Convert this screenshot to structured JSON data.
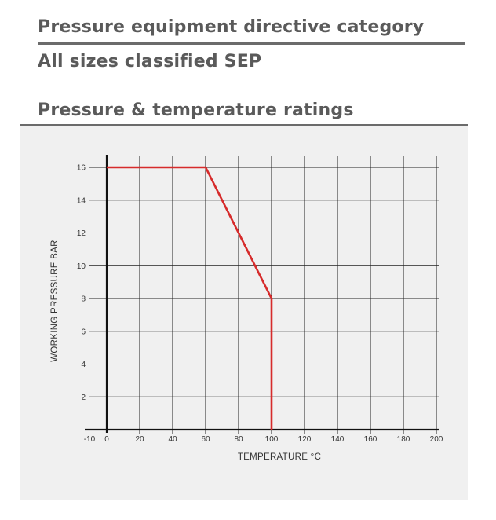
{
  "headings": {
    "directive": "Pressure equipment directive category",
    "classification": "All sizes classified SEP",
    "ratings": "Pressure & temperature ratings"
  },
  "chart_data": {
    "type": "line",
    "xlabel": "TEMPERATURE °C",
    "ylabel": "WORKING PRESSURE BAR",
    "x_ticks": [
      -10,
      0,
      20,
      40,
      60,
      80,
      100,
      120,
      140,
      160,
      180,
      200
    ],
    "y_ticks": [
      2,
      4,
      6,
      8,
      10,
      12,
      14,
      16
    ],
    "xlim": [
      -10,
      200
    ],
    "ylim": [
      0,
      16
    ],
    "grid": true,
    "series": [
      {
        "color": "#d62b2b",
        "points": [
          [
            0,
            16
          ],
          [
            60,
            16
          ],
          [
            80,
            12
          ],
          [
            100,
            8
          ],
          [
            100,
            0
          ]
        ]
      }
    ]
  }
}
